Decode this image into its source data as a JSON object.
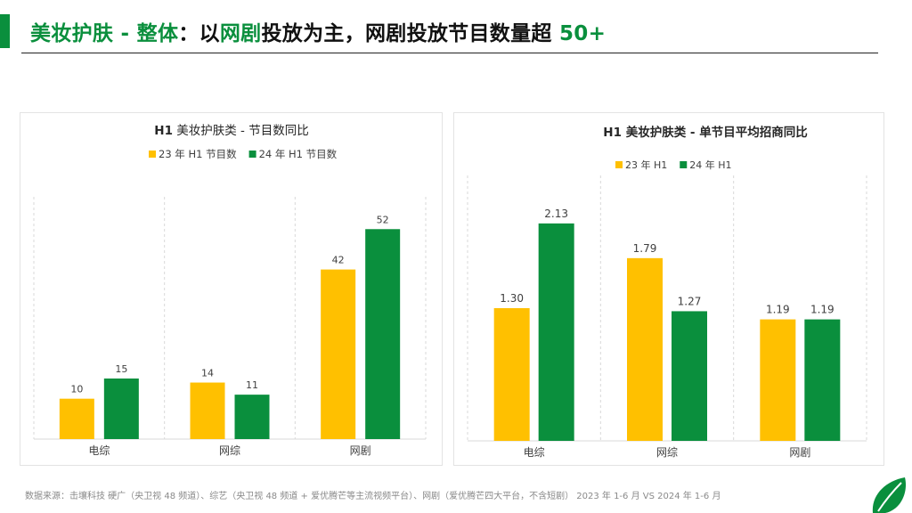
{
  "header": {
    "title_part1": "美妆护肤 - 整体",
    "title_part2": "：以",
    "title_part3": "网剧",
    "title_part4": "投放为主，网剧投放节目数量超 ",
    "title_part5": "50+"
  },
  "colors": {
    "accent": "#0a8f3d",
    "series_23": "#ffc000",
    "series_24": "#0a8f3d"
  },
  "chart_data": [
    {
      "type": "bar",
      "title": "H1 美妆护肤类 - 节目数同比",
      "title_bold": "H1",
      "title_rest": " 美妆护肤类 - 节目数同比",
      "categories": [
        "电综",
        "网综",
        "网剧"
      ],
      "series": [
        {
          "name": "23 年 H1 节目数",
          "values": [
            10,
            14,
            42
          ],
          "labels": [
            "10",
            "14",
            "42"
          ],
          "color": "#ffc000"
        },
        {
          "name": "24 年 H1 节目数",
          "values": [
            15,
            11,
            52
          ],
          "labels": [
            "15",
            "11",
            "52"
          ],
          "color": "#0a8f3d"
        }
      ],
      "ylim": [
        0,
        60
      ],
      "legend": "top",
      "grid": false
    },
    {
      "type": "bar",
      "title": "H1 美妆护肤类 - 单节目平均招商同比",
      "title_bold": "H1 美妆护肤类 - 单节目平均招商同比",
      "title_rest": "",
      "categories": [
        "电综",
        "网综",
        "网剧"
      ],
      "series": [
        {
          "name": "23 年 H1",
          "values": [
            1.3,
            1.79,
            1.19
          ],
          "labels": [
            "1.30",
            "1.79",
            "1.19"
          ],
          "color": "#ffc000"
        },
        {
          "name": "24 年 H1",
          "values": [
            2.13,
            1.27,
            1.19
          ],
          "labels": [
            "2.13",
            "1.27",
            "1.19"
          ],
          "color": "#0a8f3d"
        }
      ],
      "ylim": [
        0,
        2.6
      ],
      "legend": "top",
      "grid": false
    }
  ],
  "footer": {
    "source": "数据来源：击壤科技 硬广（央卫视 48 频道）、综艺（央卫视 48 频道 + 爱优腾芒等主流视频平台）、网剧（爱优腾芒四大平台，不含短剧） 2023 年 1-6 月 VS 2024 年 1-6 月"
  }
}
